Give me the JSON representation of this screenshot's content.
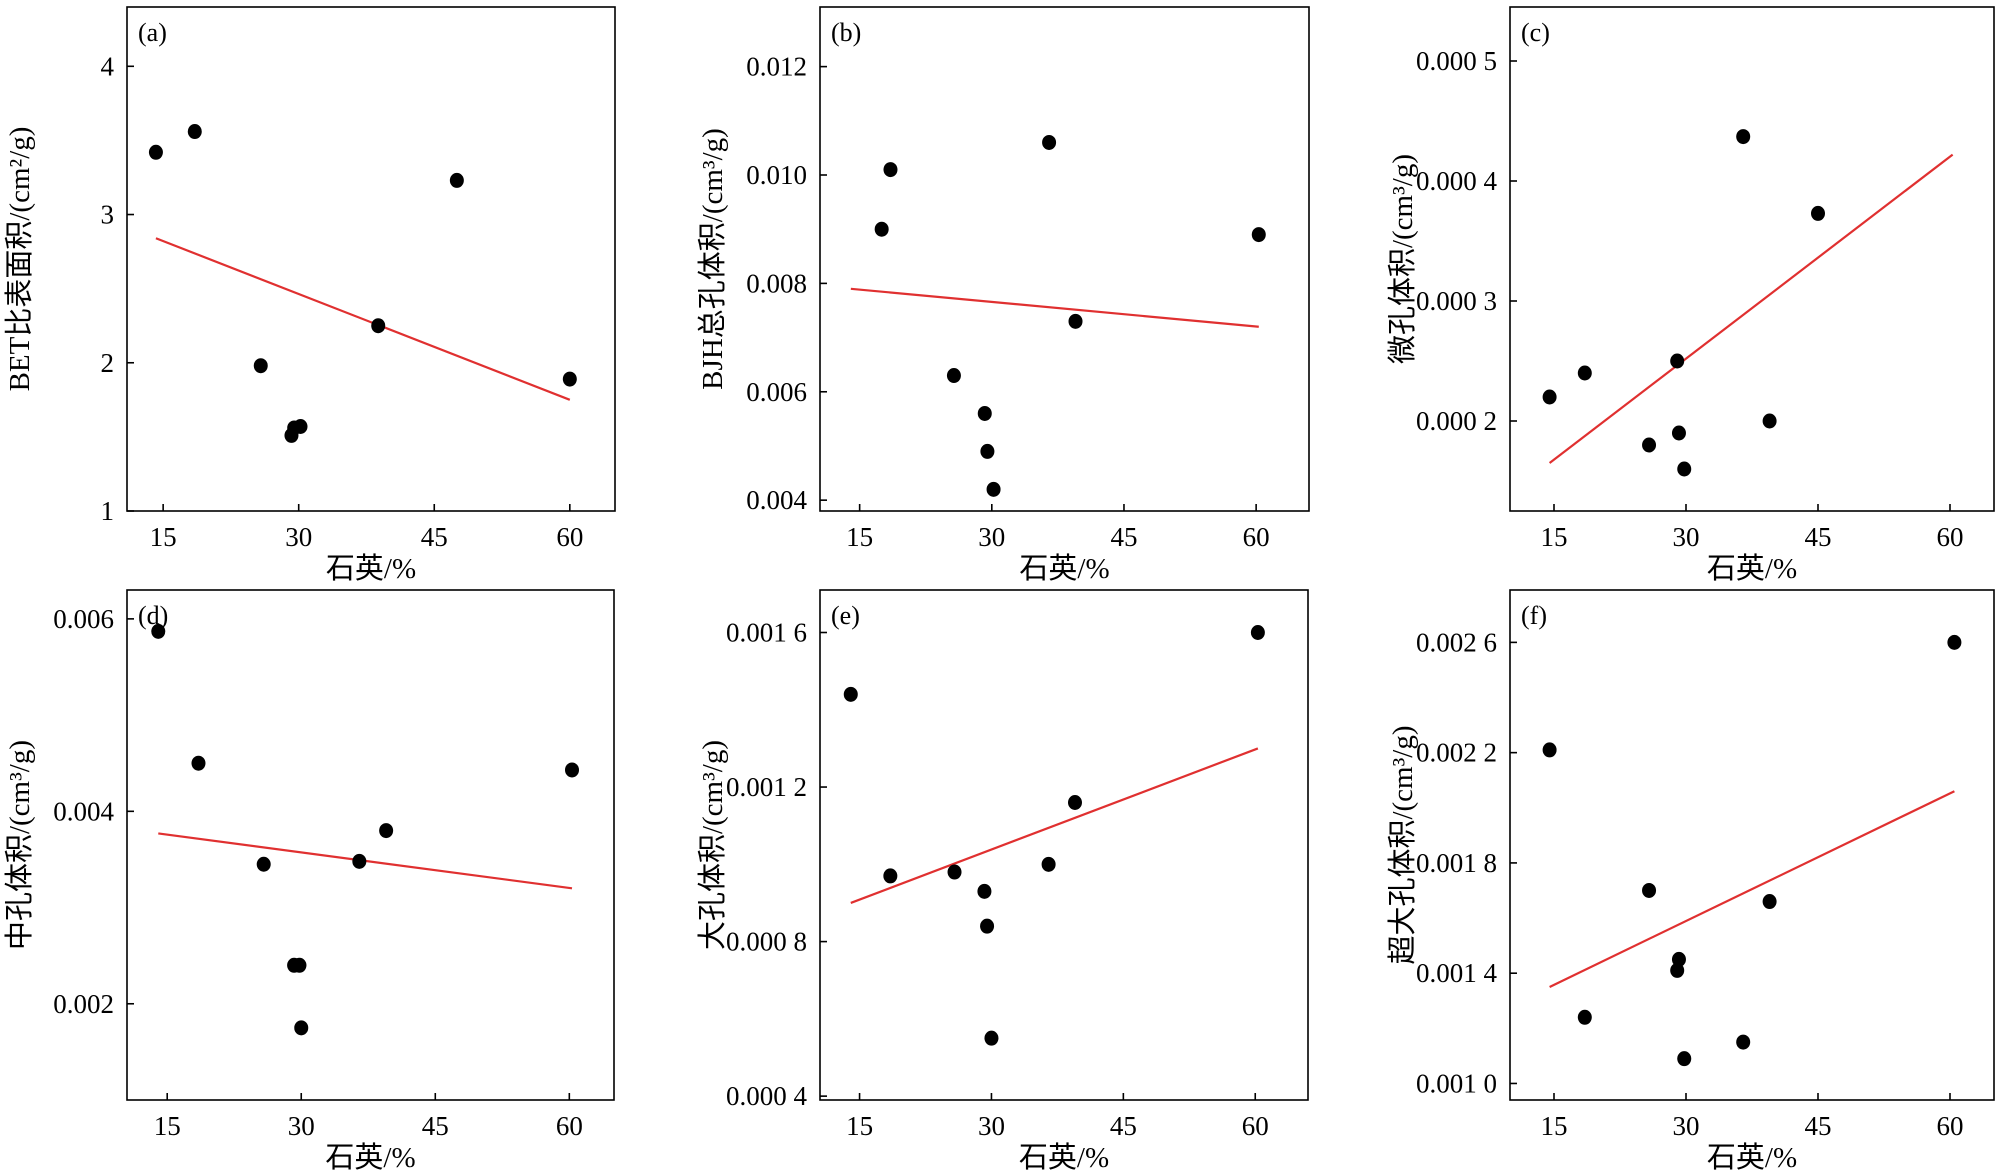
{
  "chart_data": [
    {
      "type": "scatter",
      "panel_label": "(a)",
      "xlabel": "石英/%",
      "ylabel": "BET比表面积/(cm²/g)",
      "xticks": [
        15,
        30,
        45,
        60
      ],
      "yticks": [
        1,
        2,
        3,
        4
      ],
      "ytick_labels": [
        "1",
        "2",
        "3",
        "4"
      ],
      "xlim": [
        11,
        65
      ],
      "ylim": [
        1,
        4.4
      ],
      "points": [
        [
          14.2,
          3.42
        ],
        [
          18.5,
          3.56
        ],
        [
          25.8,
          1.98
        ],
        [
          29.5,
          1.56
        ],
        [
          30.2,
          1.57
        ],
        [
          29.2,
          1.51
        ],
        [
          38.8,
          2.25
        ],
        [
          47.5,
          3.23
        ],
        [
          60.0,
          1.89
        ]
      ],
      "fit": [
        [
          14.2,
          2.84
        ],
        [
          60.0,
          1.75
        ]
      ]
    },
    {
      "type": "scatter",
      "panel_label": "(b)",
      "xlabel": "石英/%",
      "ylabel": "BJH总孔体积/(cm³/g)",
      "xticks": [
        15,
        30,
        45,
        60
      ],
      "yticks": [
        0.004,
        0.006,
        0.008,
        0.01,
        0.012
      ],
      "ytick_labels": [
        "0.004",
        "0.006",
        "0.008",
        "0.010",
        "0.012"
      ],
      "xlim": [
        10.5,
        66
      ],
      "ylim": [
        0.0038,
        0.0131
      ],
      "points": [
        [
          17.5,
          0.009
        ],
        [
          18.5,
          0.0101
        ],
        [
          25.7,
          0.0063
        ],
        [
          29.2,
          0.0056
        ],
        [
          29.5,
          0.0049
        ],
        [
          30.2,
          0.0042
        ],
        [
          36.5,
          0.0106
        ],
        [
          39.5,
          0.0073
        ],
        [
          60.3,
          0.0089
        ]
      ],
      "fit": [
        [
          14.0,
          0.0079
        ],
        [
          60.3,
          0.0072
        ]
      ]
    },
    {
      "type": "scatter",
      "panel_label": "(c)",
      "xlabel": "石英/%",
      "ylabel": "微孔体积/(cm³/g)",
      "xticks": [
        15,
        30,
        45,
        60
      ],
      "yticks": [
        0.0002,
        0.0003,
        0.0004,
        0.0005
      ],
      "ytick_labels": [
        "0.000 2",
        "0.000 3",
        "0.000 4",
        "0.000 5"
      ],
      "xlim": [
        10,
        65
      ],
      "ylim": [
        0.000125,
        0.000545
      ],
      "points": [
        [
          14.5,
          0.00022
        ],
        [
          18.5,
          0.00024
        ],
        [
          25.8,
          0.00018
        ],
        [
          29.0,
          0.00025
        ],
        [
          29.2,
          0.00019
        ],
        [
          29.8,
          0.00016
        ],
        [
          36.5,
          0.000437
        ],
        [
          39.5,
          0.0002
        ],
        [
          45.0,
          0.000373
        ]
      ],
      "fit": [
        [
          14.5,
          0.000165
        ],
        [
          60.3,
          0.000422
        ]
      ]
    },
    {
      "type": "scatter",
      "panel_label": "(d)",
      "xlabel": "石英/%",
      "ylabel": "中孔体积/(cm³/g)",
      "xticks": [
        15,
        30,
        45,
        60
      ],
      "yticks": [
        0.002,
        0.004,
        0.006
      ],
      "ytick_labels": [
        "0.002",
        "0.004",
        "0.006"
      ],
      "xlim": [
        10.5,
        65
      ],
      "ylim": [
        0.001,
        0.0063
      ],
      "points": [
        [
          14.0,
          0.00587
        ],
        [
          18.5,
          0.0045
        ],
        [
          25.8,
          0.00345
        ],
        [
          29.2,
          0.0024
        ],
        [
          29.8,
          0.0024
        ],
        [
          30.0,
          0.00175
        ],
        [
          36.5,
          0.00348
        ],
        [
          39.5,
          0.0038
        ],
        [
          60.3,
          0.00443
        ]
      ],
      "fit": [
        [
          14.0,
          0.00377
        ],
        [
          60.3,
          0.0032
        ]
      ]
    },
    {
      "type": "scatter",
      "panel_label": "(e)",
      "xlabel": "石英/%",
      "ylabel": "大孔体积/(cm³/g)",
      "xticks": [
        15,
        30,
        45,
        60
      ],
      "yticks": [
        0.0004,
        0.0008,
        0.0012,
        0.0016
      ],
      "ytick_labels": [
        "0.000 4",
        "0.000 8",
        "0.001 2",
        "0.001 6"
      ],
      "xlim": [
        10.5,
        66
      ],
      "ylim": [
        0.00039,
        0.00171
      ],
      "points": [
        [
          14.0,
          0.00144
        ],
        [
          18.5,
          0.00097
        ],
        [
          25.8,
          0.00098
        ],
        [
          29.2,
          0.00093
        ],
        [
          29.5,
          0.00084
        ],
        [
          30.0,
          0.00055
        ],
        [
          36.5,
          0.001
        ],
        [
          39.5,
          0.00116
        ],
        [
          60.3,
          0.0016
        ]
      ],
      "fit": [
        [
          14.0,
          0.0009
        ],
        [
          60.3,
          0.0013
        ]
      ]
    },
    {
      "type": "scatter",
      "panel_label": "(f)",
      "xlabel": "石英/%",
      "ylabel": "超大孔体积/(cm³/g)",
      "xticks": [
        15,
        30,
        45,
        60
      ],
      "yticks": [
        0.001,
        0.0014,
        0.0018,
        0.0022,
        0.0026
      ],
      "ytick_labels": [
        "0.001 0",
        "0.001 4",
        "0.001 8",
        "0.002 2",
        "0.002 6"
      ],
      "xlim": [
        10,
        65
      ],
      "ylim": [
        0.00094,
        0.00279
      ],
      "points": [
        [
          14.5,
          0.00221
        ],
        [
          18.5,
          0.00124
        ],
        [
          25.8,
          0.0017
        ],
        [
          29.0,
          0.00141
        ],
        [
          29.2,
          0.00145
        ],
        [
          29.8,
          0.00109
        ],
        [
          36.5,
          0.00115
        ],
        [
          39.5,
          0.00166
        ],
        [
          60.5,
          0.0026
        ]
      ],
      "fit": [
        [
          14.5,
          0.00135
        ],
        [
          60.5,
          0.00206
        ]
      ]
    }
  ]
}
